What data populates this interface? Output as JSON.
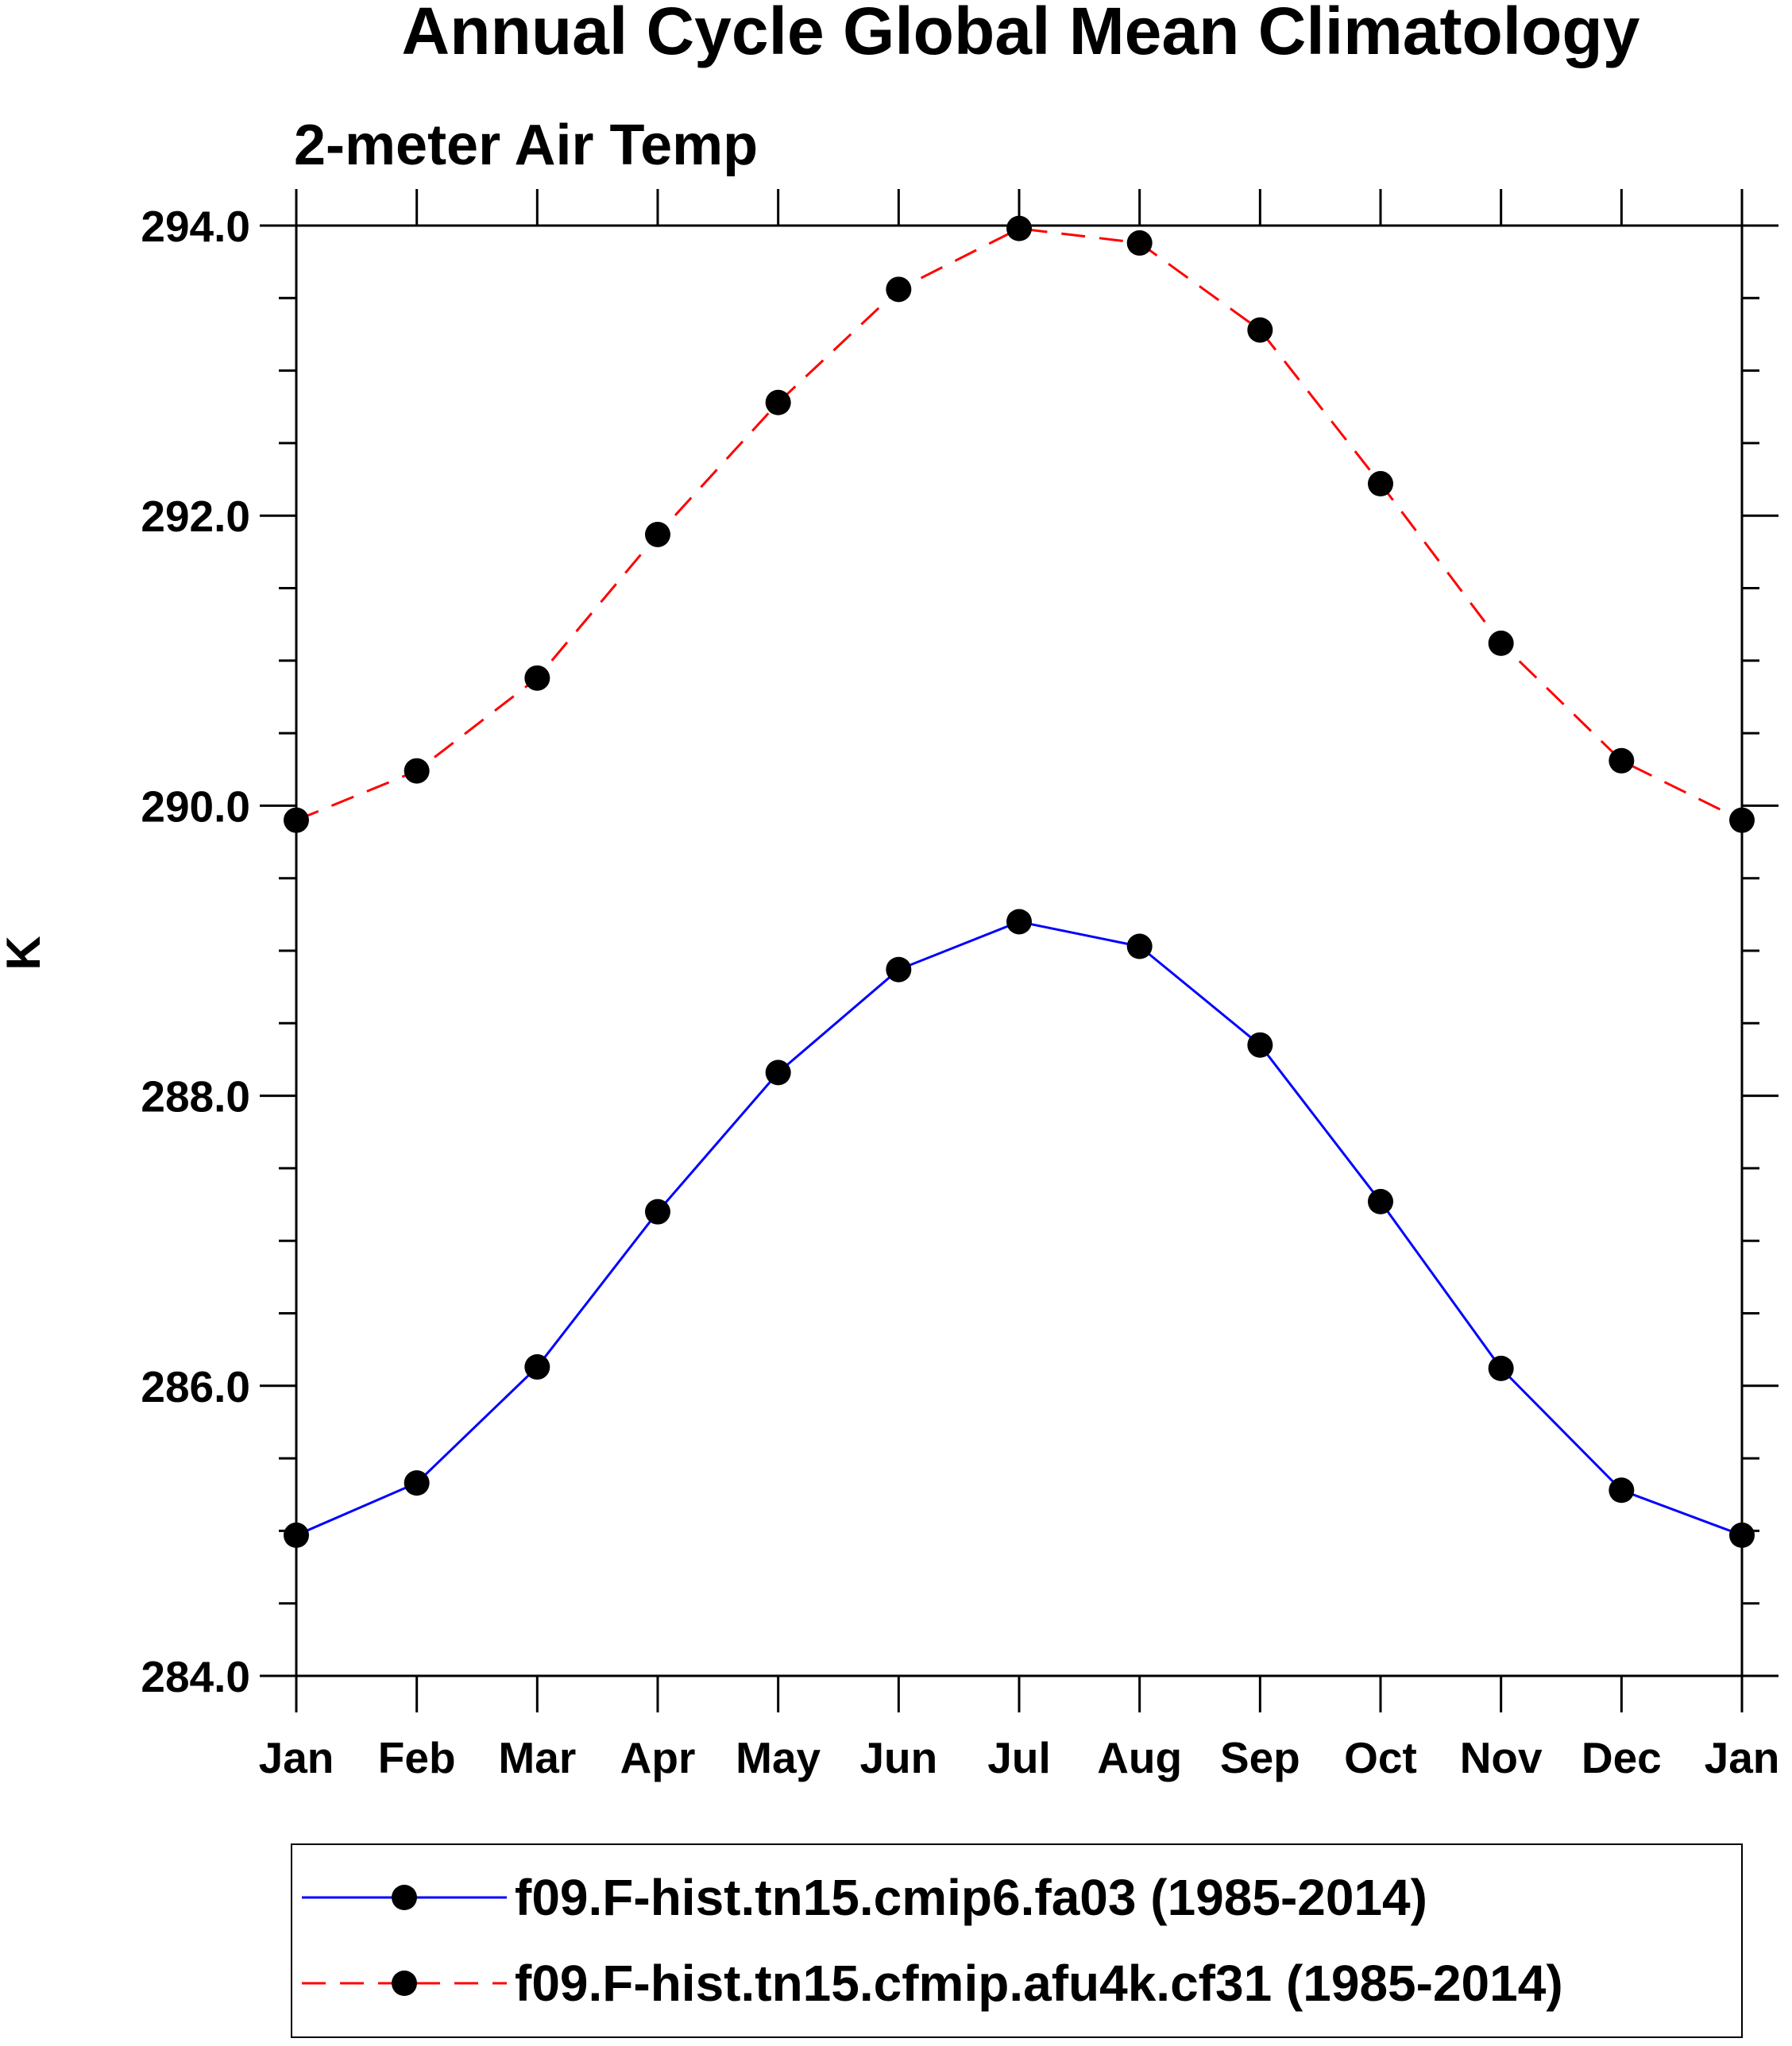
{
  "chart_data": {
    "type": "line",
    "title": "Annual Cycle Global Mean Climatology",
    "subtitle": "2-meter Air Temp",
    "xlabel": "",
    "ylabel": "K",
    "categories": [
      "Jan",
      "Feb",
      "Mar",
      "Apr",
      "May",
      "Jun",
      "Jul",
      "Aug",
      "Sep",
      "Oct",
      "Nov",
      "Dec",
      "Jan"
    ],
    "ylim": [
      284.0,
      294.0
    ],
    "yticks": [
      "284.0",
      "286.0",
      "288.0",
      "290.0",
      "292.0",
      "294.0"
    ],
    "ytick_values": [
      284,
      286,
      288,
      290,
      292,
      294
    ],
    "grid": false,
    "legend_position": "bottom",
    "series": [
      {
        "name": "f09.F-hist.tn15.cmip6.fa03 (1985-2014)",
        "color": "#0000ff",
        "dashed": false,
        "marker": "filled-circle",
        "values": [
          284.97,
          285.33,
          286.13,
          287.2,
          288.16,
          288.87,
          289.2,
          289.03,
          288.35,
          287.27,
          286.12,
          285.28,
          284.97
        ]
      },
      {
        "name": "f09.F-hist.tn15.cfmip.afu4k.cf31 (1985-2014)",
        "color": "#ff0000",
        "dashed": true,
        "marker": "filled-circle",
        "values": [
          289.9,
          290.24,
          290.88,
          291.87,
          292.78,
          293.56,
          293.98,
          293.88,
          293.28,
          292.22,
          291.12,
          290.31,
          289.9
        ]
      }
    ]
  }
}
